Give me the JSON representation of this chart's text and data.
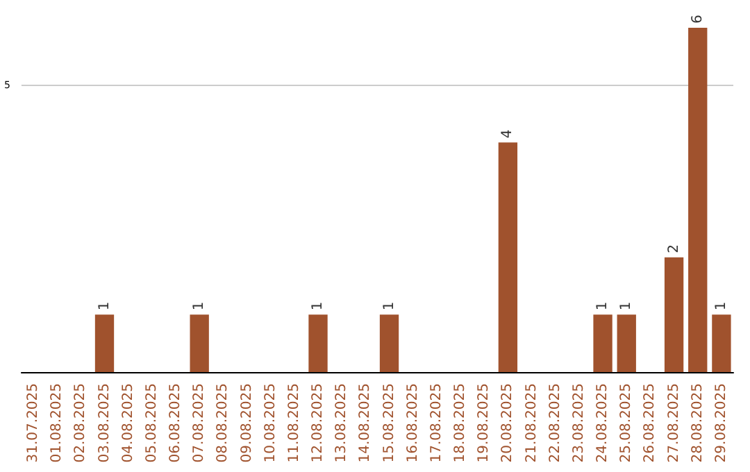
{
  "chart_data": {
    "type": "bar",
    "categories": [
      "31.07.2025",
      "01.08.2025",
      "02.08.2025",
      "03.08.2025",
      "04.08.2025",
      "05.08.2025",
      "06.08.2025",
      "07.08.2025",
      "08.08.2025",
      "09.08.2025",
      "10.08.2025",
      "11.08.2025",
      "12.08.2025",
      "13.08.2025",
      "14.08.2025",
      "15.08.2025",
      "16.08.2025",
      "17.08.2025",
      "18.08.2025",
      "19.08.2025",
      "20.08.2025",
      "21.08.2025",
      "22.08.2025",
      "23.08.2025",
      "24.08.2025",
      "25.08.2025",
      "26.08.2025",
      "27.08.2025",
      "28.08.2025",
      "29.08.2025"
    ],
    "values": [
      0,
      0,
      0,
      1,
      0,
      0,
      0,
      1,
      0,
      0,
      0,
      0,
      1,
      0,
      0,
      1,
      0,
      0,
      0,
      0,
      4,
      0,
      0,
      0,
      1,
      1,
      0,
      2,
      6,
      1
    ],
    "value_labels": [
      null,
      null,
      null,
      "1",
      null,
      null,
      null,
      "1",
      null,
      null,
      null,
      null,
      "1",
      null,
      null,
      "1",
      null,
      null,
      null,
      null,
      "4",
      null,
      null,
      null,
      "1",
      "1",
      null,
      "2",
      "6",
      "1"
    ],
    "color": "#a0522d",
    "ylim": [
      0,
      6
    ],
    "yticks": [
      {
        "value": 0,
        "label": null
      },
      5
    ],
    "grid": "y"
  }
}
